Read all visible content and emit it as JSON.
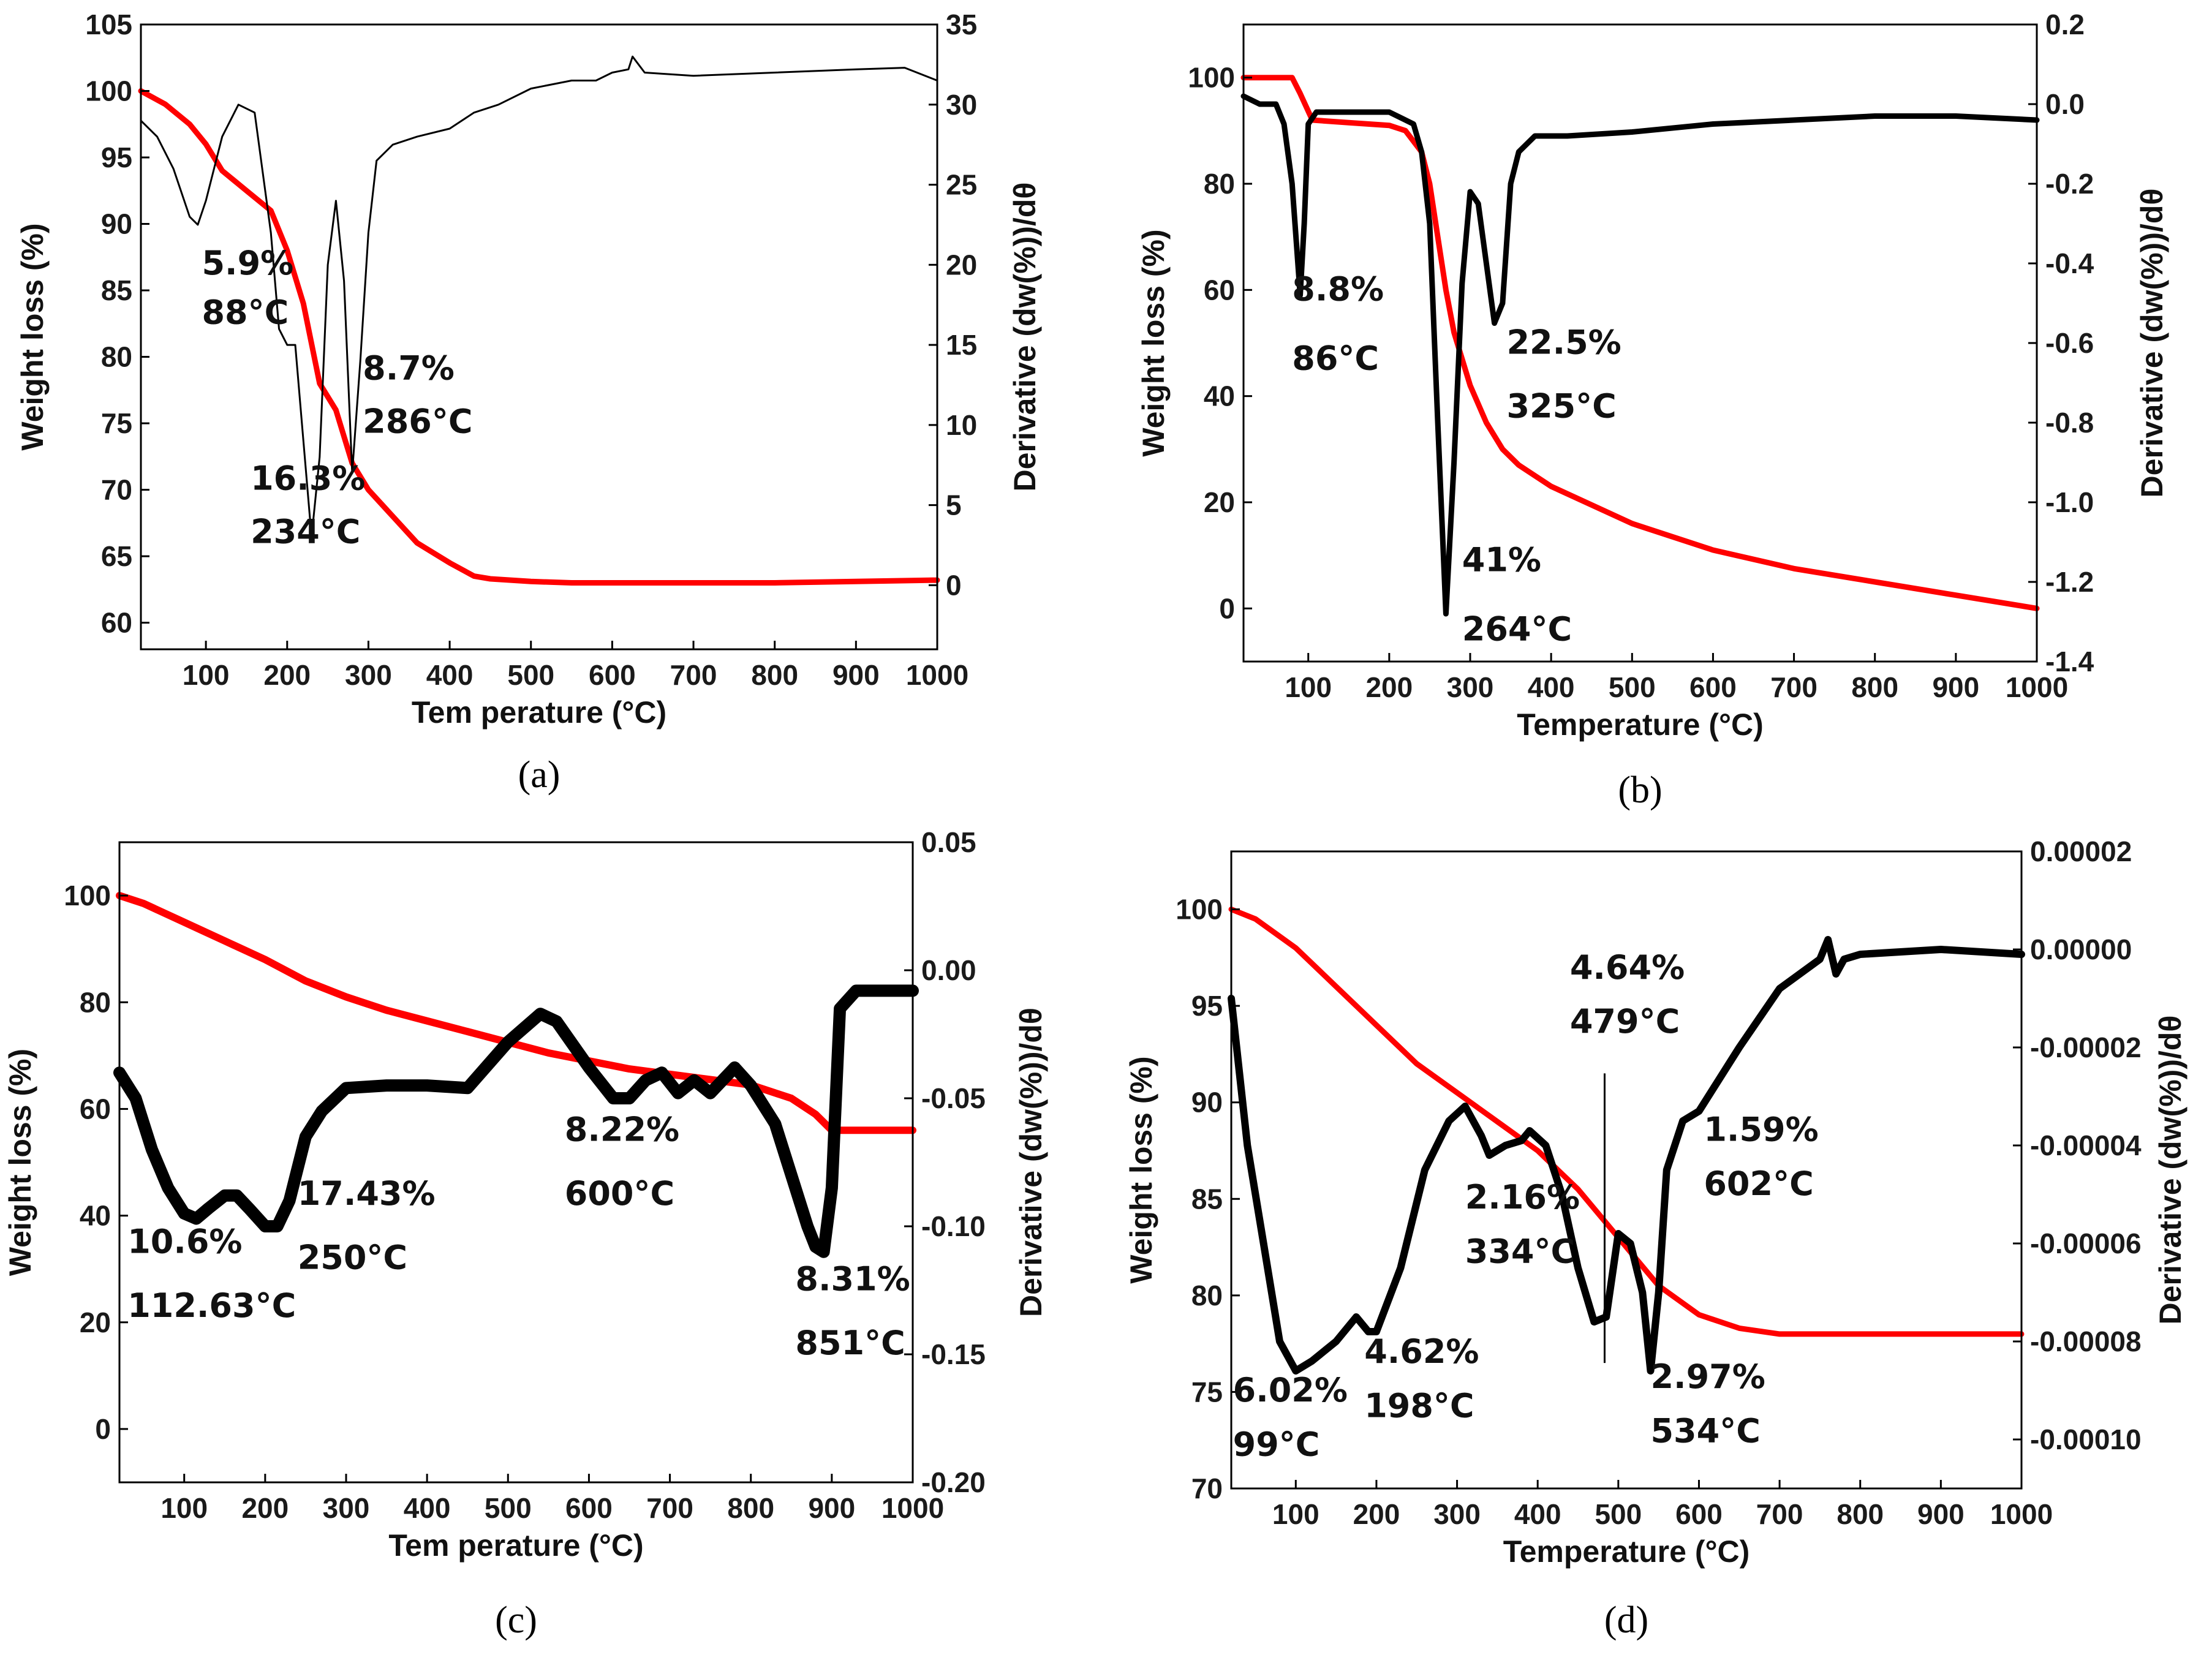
{
  "chart_data": [
    {
      "type": "line",
      "panel": "(a)",
      "xlabel": "Tem perature (°C)",
      "ylabel": "Weight loss (%)",
      "y2label": "Derivative (dw(%))/dθ",
      "xlim": [
        20,
        1000
      ],
      "ylim": [
        58,
        105
      ],
      "y2lim": [
        -4,
        35
      ],
      "xticks": [
        "100",
        "200",
        "300",
        "400",
        "500",
        "600",
        "700",
        "800",
        "900",
        "1000"
      ],
      "xtick_values": [
        100,
        200,
        300,
        400,
        500,
        600,
        700,
        800,
        900,
        1000
      ],
      "yticks": [
        "60",
        "65",
        "70",
        "75",
        "80",
        "85",
        "90",
        "95",
        "100",
        "105"
      ],
      "ytick_values": [
        60,
        65,
        70,
        75,
        80,
        85,
        90,
        95,
        100,
        105
      ],
      "y2ticks": [
        "0",
        "5",
        "10",
        "15",
        "20",
        "25",
        "30",
        "35"
      ],
      "y2tick_values": [
        0,
        5,
        10,
        15,
        20,
        25,
        30,
        35
      ],
      "series": [
        {
          "name": "Weight loss",
          "axis": "left",
          "color": "#ff0000",
          "width": 9,
          "x": [
            20,
            50,
            80,
            100,
            120,
            150,
            180,
            200,
            220,
            240,
            260,
            280,
            300,
            330,
            360,
            400,
            430,
            450,
            500,
            550,
            600,
            700,
            800,
            900,
            1000
          ],
          "y": [
            100,
            99,
            97.5,
            96,
            94,
            92.5,
            91,
            88,
            84,
            78,
            76,
            72,
            70,
            68,
            66,
            64.5,
            63.5,
            63.3,
            63.1,
            63,
            63,
            63,
            63,
            63.1,
            63.2
          ]
        },
        {
          "name": "Derivative",
          "axis": "right",
          "color": "#000000",
          "width": 3,
          "x": [
            20,
            40,
            60,
            80,
            90,
            100,
            120,
            140,
            160,
            180,
            190,
            200,
            210,
            220,
            230,
            240,
            250,
            260,
            270,
            280,
            290,
            300,
            310,
            330,
            360,
            400,
            430,
            460,
            500,
            550,
            580,
            600,
            620,
            625,
            640,
            700,
            800,
            900,
            960,
            1000
          ],
          "y": [
            29,
            28,
            26,
            23,
            22.5,
            24,
            28,
            30,
            29.5,
            22,
            16,
            15,
            15,
            9,
            3,
            8,
            20,
            24,
            19,
            7,
            14,
            22,
            26.5,
            27.5,
            28,
            28.5,
            29.5,
            30,
            31,
            31.5,
            31.5,
            32,
            32.2,
            33,
            32,
            31.8,
            32,
            32.2,
            32.3,
            31.5
          ]
        }
      ],
      "annotations": [
        {
          "text": "5.9%",
          "x": 95,
          "y": 86.2
        },
        {
          "text": "88°C",
          "x": 95,
          "y": 82.5
        },
        {
          "text": "8.7%",
          "x": 293,
          "y": 78.3
        },
        {
          "text": "286°C",
          "x": 293,
          "y": 74.3
        },
        {
          "text": "16.3%",
          "x": 155,
          "y": 70
        },
        {
          "text": "234°C",
          "x": 155,
          "y": 66
        }
      ]
    },
    {
      "type": "line",
      "panel": "(b)",
      "xlabel": "Temperature (°C)",
      "ylabel": "Weight loss (%)",
      "y2label": "Derivative (dw(%))/dθ",
      "xlim": [
        20,
        1000
      ],
      "ylim": [
        -10,
        110
      ],
      "y2lim": [
        -1.4,
        0.2
      ],
      "xticks": [
        "100",
        "200",
        "300",
        "400",
        "500",
        "600",
        "700",
        "800",
        "900",
        "1000"
      ],
      "xtick_values": [
        100,
        200,
        300,
        400,
        500,
        600,
        700,
        800,
        900,
        1000
      ],
      "yticks": [
        "0",
        "20",
        "40",
        "60",
        "80",
        "100"
      ],
      "ytick_values": [
        0,
        20,
        40,
        60,
        80,
        100
      ],
      "y2ticks": [
        "0.2",
        "0.0",
        "-0.2",
        "-0.4",
        "-0.6",
        "-0.8",
        "-1.0",
        "-1.2",
        "-1.4"
      ],
      "y2tick_values": [
        0.2,
        0,
        -0.2,
        -0.4,
        -0.6,
        -0.8,
        -1.0,
        -1.2,
        -1.4
      ],
      "series": [
        {
          "name": "Weight loss",
          "axis": "left",
          "color": "#ff0000",
          "width": 9,
          "x": [
            20,
            50,
            80,
            90,
            105,
            150,
            200,
            220,
            240,
            250,
            260,
            270,
            280,
            300,
            320,
            340,
            360,
            400,
            500,
            600,
            700,
            800,
            900,
            1000
          ],
          "y": [
            100,
            100,
            100,
            97,
            92,
            91.5,
            91,
            90,
            86,
            80,
            70,
            60,
            52,
            42,
            35,
            30,
            27,
            23,
            16,
            11,
            7.5,
            5,
            2.5,
            0
          ]
        },
        {
          "name": "Derivative",
          "axis": "right",
          "color": "#000000",
          "width": 9,
          "x": [
            20,
            40,
            60,
            70,
            80,
            90,
            95,
            100,
            110,
            130,
            150,
            200,
            230,
            240,
            250,
            260,
            270,
            280,
            290,
            300,
            310,
            320,
            330,
            340,
            350,
            360,
            380,
            420,
            500,
            600,
            700,
            800,
            900,
            1000
          ],
          "y": [
            0.02,
            0,
            0,
            -0.05,
            -0.2,
            -0.48,
            -0.3,
            -0.05,
            -0.02,
            -0.02,
            -0.02,
            -0.02,
            -0.05,
            -0.12,
            -0.3,
            -0.8,
            -1.28,
            -0.9,
            -0.45,
            -0.22,
            -0.25,
            -0.4,
            -0.55,
            -0.5,
            -0.2,
            -0.12,
            -0.08,
            -0.08,
            -0.07,
            -0.05,
            -0.04,
            -0.03,
            -0.03,
            -0.04
          ]
        }
      ],
      "annotations": [
        {
          "text": "8.8%",
          "x": 80,
          "y": 58
        },
        {
          "text": "86°C",
          "x": 80,
          "y": 45
        },
        {
          "text": "22.5%",
          "x": 345,
          "y": 48
        },
        {
          "text": "325°C",
          "x": 345,
          "y": 36
        },
        {
          "text": "41%",
          "x": 290,
          "y": 7
        },
        {
          "text": "264°C",
          "x": 290,
          "y": -6
        }
      ]
    },
    {
      "type": "line",
      "panel": "(c)",
      "xlabel": "Tem perature (°C)",
      "ylabel": "Weight loss (%)",
      "y2label": "Derivative (dw(%))/dθ",
      "xlim": [
        20,
        1000
      ],
      "ylim": [
        -10,
        110
      ],
      "y2lim": [
        -0.2,
        0.05
      ],
      "xticks": [
        "100",
        "200",
        "300",
        "400",
        "500",
        "600",
        "700",
        "800",
        "900",
        "1000"
      ],
      "xtick_values": [
        100,
        200,
        300,
        400,
        500,
        600,
        700,
        800,
        900,
        1000
      ],
      "yticks": [
        "0",
        "20",
        "40",
        "60",
        "80",
        "100"
      ],
      "ytick_values": [
        0,
        20,
        40,
        60,
        80,
        100
      ],
      "y2ticks": [
        "0.05",
        "0.00",
        "-0.05",
        "-0.10",
        "-0.15",
        "-0.20"
      ],
      "y2tick_values": [
        0.05,
        0,
        -0.05,
        -0.1,
        -0.15,
        -0.2
      ],
      "series": [
        {
          "name": "Weight loss",
          "axis": "left",
          "color": "#ff0000",
          "width": 12,
          "x": [
            20,
            50,
            100,
            150,
            200,
            250,
            300,
            350,
            400,
            450,
            500,
            550,
            600,
            650,
            700,
            750,
            800,
            850,
            880,
            900,
            950,
            1000
          ],
          "y": [
            100,
            98.5,
            95,
            91.5,
            88,
            84,
            81,
            78.5,
            76.5,
            74.5,
            72.5,
            70.5,
            69,
            67.5,
            66.5,
            65.5,
            64.5,
            62,
            59,
            56,
            56,
            56
          ]
        },
        {
          "name": "Derivative",
          "axis": "right",
          "color": "#000000",
          "width": 20,
          "x": [
            20,
            40,
            60,
            80,
            100,
            115,
            130,
            150,
            165,
            180,
            200,
            215,
            230,
            250,
            270,
            300,
            350,
            400,
            450,
            500,
            540,
            560,
            600,
            630,
            650,
            670,
            690,
            710,
            730,
            750,
            780,
            800,
            830,
            850,
            870,
            880,
            890,
            900,
            910,
            930,
            1000
          ],
          "y": [
            -0.04,
            -0.05,
            -0.07,
            -0.085,
            -0.095,
            -0.097,
            -0.093,
            -0.088,
            -0.088,
            -0.093,
            -0.1,
            -0.1,
            -0.09,
            -0.065,
            -0.055,
            -0.046,
            -0.045,
            -0.045,
            -0.046,
            -0.028,
            -0.017,
            -0.02,
            -0.038,
            -0.05,
            -0.05,
            -0.043,
            -0.04,
            -0.048,
            -0.043,
            -0.048,
            -0.038,
            -0.045,
            -0.06,
            -0.08,
            -0.1,
            -0.108,
            -0.11,
            -0.085,
            -0.015,
            -0.008,
            -0.008
          ]
        }
      ],
      "annotations": [
        {
          "text": "10.6%",
          "x": 30,
          "y": 33
        },
        {
          "text": "112.63°C",
          "x": 30,
          "y": 21
        },
        {
          "text": "17.43%",
          "x": 240,
          "y": 42
        },
        {
          "text": "250°C",
          "x": 240,
          "y": 30
        },
        {
          "text": "8.22%",
          "x": 570,
          "y": 54
        },
        {
          "text": "600°C",
          "x": 570,
          "y": 42
        },
        {
          "text": "8.31%",
          "x": 855,
          "y": 26
        },
        {
          "text": "851°C",
          "x": 855,
          "y": 14
        }
      ]
    },
    {
      "type": "line",
      "panel": "(d)",
      "xlabel": "Temperature (°C)",
      "ylabel": "Weight loss (%)",
      "y2label": "Derivative (dw(%))/dθ",
      "xlim": [
        20,
        1000
      ],
      "ylim": [
        70,
        103
      ],
      "y2lim": [
        -0.00011,
        2e-05
      ],
      "xticks": [
        "100",
        "200",
        "300",
        "400",
        "500",
        "600",
        "700",
        "800",
        "900",
        "1000"
      ],
      "xtick_values": [
        100,
        200,
        300,
        400,
        500,
        600,
        700,
        800,
        900,
        1000
      ],
      "yticks": [
        "70",
        "75",
        "80",
        "85",
        "90",
        "95",
        "100"
      ],
      "ytick_values": [
        70,
        75,
        80,
        85,
        90,
        95,
        100
      ],
      "y2ticks": [
        "0.00002",
        "0.00000",
        "-0.00002",
        "-0.00004",
        "-0.00006",
        "-0.00008",
        "-0.00010"
      ],
      "y2tick_values": [
        2e-05,
        0,
        -2e-05,
        -4e-05,
        -6e-05,
        -8e-05,
        -0.0001
      ],
      "series": [
        {
          "name": "Weight loss",
          "axis": "left",
          "color": "#ff0000",
          "width": 9,
          "x": [
            20,
            50,
            100,
            150,
            200,
            250,
            300,
            350,
            400,
            450,
            500,
            550,
            600,
            650,
            700,
            800,
            900,
            1000
          ],
          "y": [
            100,
            99.5,
            98,
            96,
            94,
            92,
            90.5,
            89,
            87.5,
            85.5,
            83,
            80.5,
            79,
            78.3,
            78,
            78,
            78,
            78
          ]
        },
        {
          "name": "Derivative",
          "axis": "right",
          "color": "#000000",
          "width": 12,
          "x": [
            20,
            40,
            60,
            80,
            100,
            120,
            150,
            175,
            190,
            200,
            230,
            260,
            290,
            310,
            330,
            340,
            360,
            380,
            390,
            410,
            430,
            450,
            470,
            485,
            500,
            515,
            530,
            540,
            550,
            560,
            580,
            600,
            650,
            700,
            750,
            760,
            770,
            780,
            800,
            900,
            1000
          ],
          "y": [
            -1e-05,
            -4e-05,
            -6e-05,
            -8e-05,
            -8.6e-05,
            -8.4e-05,
            -8e-05,
            -7.5e-05,
            -7.8e-05,
            -7.8e-05,
            -6.5e-05,
            -4.5e-05,
            -3.5e-05,
            -3.2e-05,
            -3.8e-05,
            -4.2e-05,
            -4e-05,
            -3.9e-05,
            -3.7e-05,
            -4e-05,
            -5e-05,
            -6.5e-05,
            -7.6e-05,
            -7.5e-05,
            -5.8e-05,
            -6e-05,
            -7e-05,
            -8.6e-05,
            -7e-05,
            -4.5e-05,
            -3.5e-05,
            -3.3e-05,
            -2e-05,
            -8e-06,
            -2e-06,
            2e-06,
            -5e-06,
            -2e-06,
            -1e-06,
            0,
            -1e-06
          ]
        }
      ],
      "vlines": [
        {
          "x": 483,
          "y_from": 76.5,
          "y_to": 91.5
        }
      ],
      "annotations": [
        {
          "text": "4.64%",
          "x": 440,
          "y": 96.4
        },
        {
          "text": "479°C",
          "x": 440,
          "y": 93.6
        },
        {
          "text": "1.59%",
          "x": 606,
          "y": 88
        },
        {
          "text": "602°C",
          "x": 606,
          "y": 85.2
        },
        {
          "text": "2.16%",
          "x": 310,
          "y": 84.5
        },
        {
          "text": "334°C",
          "x": 310,
          "y": 81.7
        },
        {
          "text": "4.62%",
          "x": 185,
          "y": 76.5
        },
        {
          "text": "198°C",
          "x": 185,
          "y": 73.7
        },
        {
          "text": "6.02%",
          "x": 22,
          "y": 74.5
        },
        {
          "text": "99°C",
          "x": 22,
          "y": 71.7
        },
        {
          "text": "2.97%",
          "x": 540,
          "y": 75.2
        },
        {
          "text": "534°C",
          "x": 540,
          "y": 72.4
        }
      ]
    }
  ]
}
